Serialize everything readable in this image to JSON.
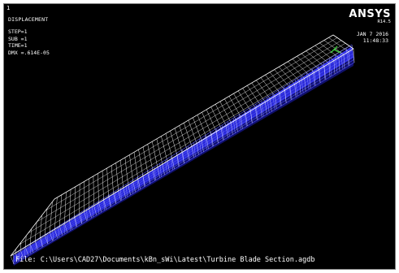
{
  "viewport": {
    "window_number": "1",
    "result_title": "DISPLACEMENT",
    "result_lines": [
      "STEP=1",
      "SUB =1",
      "TIME=1",
      "DMX =.614E-05"
    ],
    "brand": "ANSYS",
    "release": "R14.5",
    "date": "JAN  7 2016",
    "time": "11:48:33",
    "file_path": "File: C:\\Users\\CAD27\\Documents\\kBn_sWi\\Latest\\Turbine Blade Section.agdb"
  },
  "colors": {
    "background": "#000000",
    "wireframe": "#ffffff",
    "mesh_fill": "#2a2ad6",
    "mesh_dark": "#10106a",
    "tip_marker": "#3ec83e"
  }
}
